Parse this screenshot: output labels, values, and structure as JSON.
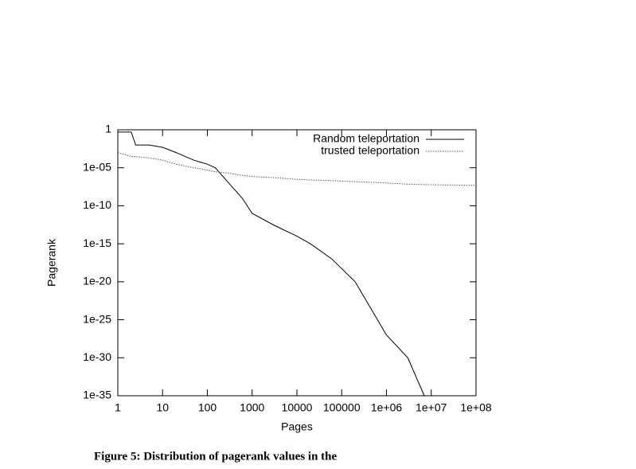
{
  "chart_data": {
    "type": "line",
    "xlabel": "Pages",
    "ylabel": "Pagerank",
    "caption": "Figure 5: Distribution of pagerank values in the",
    "xlog": true,
    "ylog": true,
    "legend": "upper-right",
    "xlim": [
      1,
      100000000
    ],
    "ylim": [
      1e-35,
      1
    ],
    "xticks": [
      1,
      10,
      100,
      1000,
      10000,
      100000,
      {
        "value": 1000000,
        "label": "1e+06"
      },
      {
        "value": 10000000,
        "label": "1e+07"
      },
      {
        "value": 100000000,
        "label": "1e+08"
      }
    ],
    "yticks": [
      1,
      {
        "value": 1e-05,
        "label": "1e-05"
      },
      {
        "value": 1e-10,
        "label": "1e-10"
      },
      {
        "value": 1e-15,
        "label": "1e-15"
      },
      {
        "value": 1e-20,
        "label": "1e-20"
      },
      {
        "value": 1e-25,
        "label": "1e-25"
      },
      {
        "value": 1e-30,
        "label": "1e-30"
      },
      {
        "value": 1e-35,
        "label": "1e-35"
      }
    ],
    "x": [
      1,
      2,
      2.5,
      5,
      10,
      20,
      50,
      100,
      150,
      300,
      600,
      1000,
      3000,
      10000,
      20000,
      60000,
      200000,
      500000,
      1000000,
      3000000,
      7000000,
      100000000
    ],
    "series": [
      {
        "name": "Random teleportation",
        "color": "#000000",
        "dash": "none",
        "values": [
          0.5,
          0.5,
          0.01,
          0.01,
          0.005,
          0.001,
          0.0001,
          3e-05,
          1e-05,
          1e-07,
          1e-09,
          1e-11,
          3e-13,
          1e-14,
          1e-15,
          1e-17,
          1e-20,
          1e-24,
          1e-27,
          1e-30,
          1e-35,
          null
        ]
      },
      {
        "name": "trusted teleportation",
        "color": "#555555",
        "dash": "1.5 1.5",
        "values": [
          0.001,
          0.0003,
          0.0003,
          0.0002,
          0.0001,
          3e-05,
          1e-05,
          5e-06,
          3e-06,
          2e-06,
          1e-06,
          7e-07,
          5e-07,
          3e-07,
          2.5e-07,
          2e-07,
          1.5e-07,
          1.2e-07,
          1e-07,
          7e-08,
          6e-08,
          5e-08
        ]
      }
    ]
  }
}
